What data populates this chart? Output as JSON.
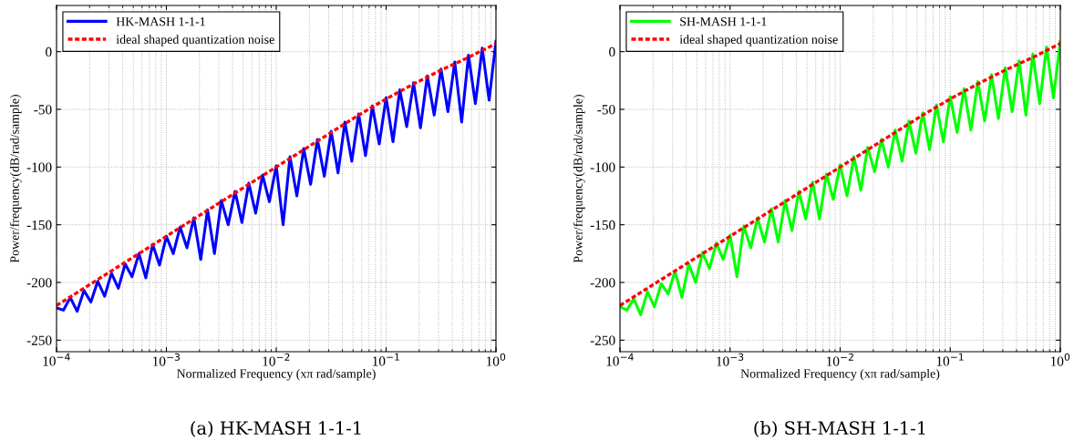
{
  "chart_data": [
    {
      "type": "line",
      "xlabel": "Normalized Frequency (xπ rad/sample)",
      "ylabel": "Power/frequency(dB/rad/sample)",
      "annotations": [
        "(a) HK-MASH 1-1-1"
      ],
      "log": "x",
      "grid": true,
      "legend": "top left",
      "xlim": [
        0.0001,
        1
      ],
      "xticks": [
        {
          "value": 0.0001,
          "label": "10$^{−4}$"
        },
        {
          "value": 0.001,
          "label": "10$^{−3}$"
        },
        {
          "value": 0.01,
          "label": "10$^{−2}$"
        },
        {
          "value": 0.1,
          "label": "10$^{−1}$"
        },
        {
          "value": 1,
          "label": "10$^{0}$"
        }
      ],
      "ylim": [
        -260,
        40
      ],
      "yticks": [
        -250,
        -200,
        -150,
        -100,
        -50,
        0
      ],
      "x": [
        0.0001,
        0.0001155,
        0.0001334,
        0.000154,
        0.0001778,
        0.0002054,
        0.0002371,
        0.0002738,
        0.0003162,
        0.0003652,
        0.0004217,
        0.000487,
        0.0005623,
        0.0006494,
        0.0007499,
        0.000866,
        0.001,
        0.001155,
        0.001334,
        0.00154,
        0.001778,
        0.002054,
        0.002371,
        0.002738,
        0.003162,
        0.003652,
        0.004217,
        0.00487,
        0.005623,
        0.006494,
        0.007499,
        0.00866,
        0.01,
        0.01155,
        0.01334,
        0.0154,
        0.01778,
        0.02054,
        0.02371,
        0.02738,
        0.03162,
        0.03652,
        0.04217,
        0.0487,
        0.05623,
        0.06494,
        0.07499,
        0.0866,
        0.1,
        0.1155,
        0.1334,
        0.154,
        0.1778,
        0.2054,
        0.2371,
        0.2738,
        0.3162,
        0.3652,
        0.4217,
        0.487,
        0.5623,
        0.6494,
        0.7499,
        0.866,
        1
      ],
      "series": [
        {
          "name": "HK-MASH 1-1-1",
          "color": "#0000ff",
          "line_style": "solid",
          "values": [
            -222,
            -224,
            -213,
            -225,
            -207,
            -217,
            -199,
            -212,
            -192,
            -205,
            -184,
            -195,
            -175,
            -196,
            -167,
            -185,
            -160,
            -175,
            -152,
            -170,
            -144,
            -180,
            -137,
            -175,
            -129,
            -150,
            -121,
            -148,
            -114,
            -140,
            -107,
            -130,
            -99,
            -150,
            -91,
            -125,
            -84,
            -115,
            -76,
            -108,
            -69,
            -105,
            -61,
            -95,
            -54,
            -90,
            -47,
            -80,
            -40,
            -78,
            -33,
            -65,
            -27,
            -66,
            -21,
            -55,
            -15,
            -52,
            -9,
            -61,
            -3,
            -45,
            3,
            -42,
            9
          ]
        },
        {
          "name": "ideal shaped quantization noise",
          "color": "#ff0000",
          "line_style": "dashed",
          "x": [
            0.0001,
            0.0001778,
            0.0003162,
            0.0005623,
            0.001,
            0.001778,
            0.003162,
            0.005623,
            0.01,
            0.01778,
            0.03162,
            0.05623,
            0.1,
            0.1778,
            0.3162,
            0.5623,
            1
          ],
          "values": [
            -220,
            -205,
            -190,
            -175,
            -160,
            -145,
            -130,
            -115,
            -100,
            -85,
            -70,
            -55,
            -41,
            -28,
            -16,
            -5,
            7
          ]
        }
      ]
    },
    {
      "type": "line",
      "xlabel": "Normalized Frequency (xπ rad/sample)",
      "ylabel": "Power/frequency(dB/rad/sample)",
      "annotations": [
        "(b) SH-MASH 1-1-1"
      ],
      "log": "x",
      "grid": true,
      "legend": "top left",
      "xlim": [
        0.0001,
        1
      ],
      "xticks": [
        {
          "value": 0.0001,
          "label": "10$^{−4}$"
        },
        {
          "value": 0.001,
          "label": "10$^{−3}$"
        },
        {
          "value": 0.01,
          "label": "10$^{−2}$"
        },
        {
          "value": 0.1,
          "label": "10$^{−1}$"
        },
        {
          "value": 1,
          "label": "10$^{0}$"
        }
      ],
      "ylim": [
        -260,
        40
      ],
      "yticks": [
        -250,
        -200,
        -150,
        -100,
        -50,
        0
      ],
      "x": [
        0.0001,
        0.0001155,
        0.0001334,
        0.000154,
        0.0001778,
        0.0002054,
        0.0002371,
        0.0002738,
        0.0003162,
        0.0003652,
        0.0004217,
        0.000487,
        0.0005623,
        0.0006494,
        0.0007499,
        0.000866,
        0.001,
        0.001155,
        0.001334,
        0.00154,
        0.001778,
        0.002054,
        0.002371,
        0.002738,
        0.003162,
        0.003652,
        0.004217,
        0.00487,
        0.005623,
        0.006494,
        0.007499,
        0.00866,
        0.01,
        0.01155,
        0.01334,
        0.0154,
        0.01778,
        0.02054,
        0.02371,
        0.02738,
        0.03162,
        0.03652,
        0.04217,
        0.0487,
        0.05623,
        0.06494,
        0.07499,
        0.0866,
        0.1,
        0.1155,
        0.1334,
        0.154,
        0.1778,
        0.2054,
        0.2371,
        0.2738,
        0.3162,
        0.3652,
        0.4217,
        0.487,
        0.5623,
        0.6494,
        0.7499,
        0.866,
        1
      ],
      "series": [
        {
          "name": "SH-MASH 1-1-1",
          "color": "#00ff00",
          "line_style": "solid",
          "values": [
            -221,
            -224,
            -214,
            -228,
            -208,
            -221,
            -201,
            -210,
            -190,
            -213,
            -184,
            -200,
            -174,
            -188,
            -166,
            -180,
            -159,
            -195,
            -151,
            -170,
            -144,
            -165,
            -136,
            -165,
            -129,
            -155,
            -121,
            -145,
            -113,
            -145,
            -106,
            -128,
            -98,
            -125,
            -91,
            -120,
            -83,
            -104,
            -76,
            -100,
            -68,
            -95,
            -60,
            -88,
            -53,
            -85,
            -46,
            -78,
            -39,
            -70,
            -32,
            -68,
            -26,
            -60,
            -20,
            -58,
            -14,
            -52,
            -8,
            -55,
            -2,
            -45,
            4,
            -40,
            9
          ]
        },
        {
          "name": "ideal shaped quantization noise",
          "color": "#ff0000",
          "line_style": "dashed",
          "x": [
            0.0001,
            0.0001778,
            0.0003162,
            0.0005623,
            0.001,
            0.001778,
            0.003162,
            0.005623,
            0.01,
            0.01778,
            0.03162,
            0.05623,
            0.1,
            0.1778,
            0.3162,
            0.5623,
            1
          ],
          "values": [
            -220,
            -205,
            -190,
            -175,
            -160,
            -145,
            -130,
            -115,
            -100,
            -85,
            -70,
            -55,
            -41,
            -28,
            -16,
            -5,
            7
          ]
        }
      ]
    }
  ]
}
